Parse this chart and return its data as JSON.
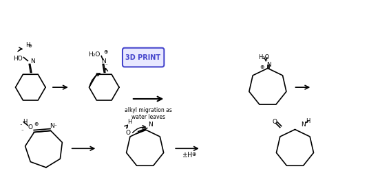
{
  "bg_color": "#ffffff",
  "line_color": "#000000",
  "arrow_color": "#000000",
  "curved_arrow_color": "#000000",
  "box_color": "#4444cc",
  "box_text": "3D PRINT",
  "label_alkyl": "alkyl migration as\nwater leaves",
  "label_pm_h": "±H",
  "plus_color": "#000000",
  "figsize": [
    5.52,
    2.84
  ],
  "dpi": 100
}
